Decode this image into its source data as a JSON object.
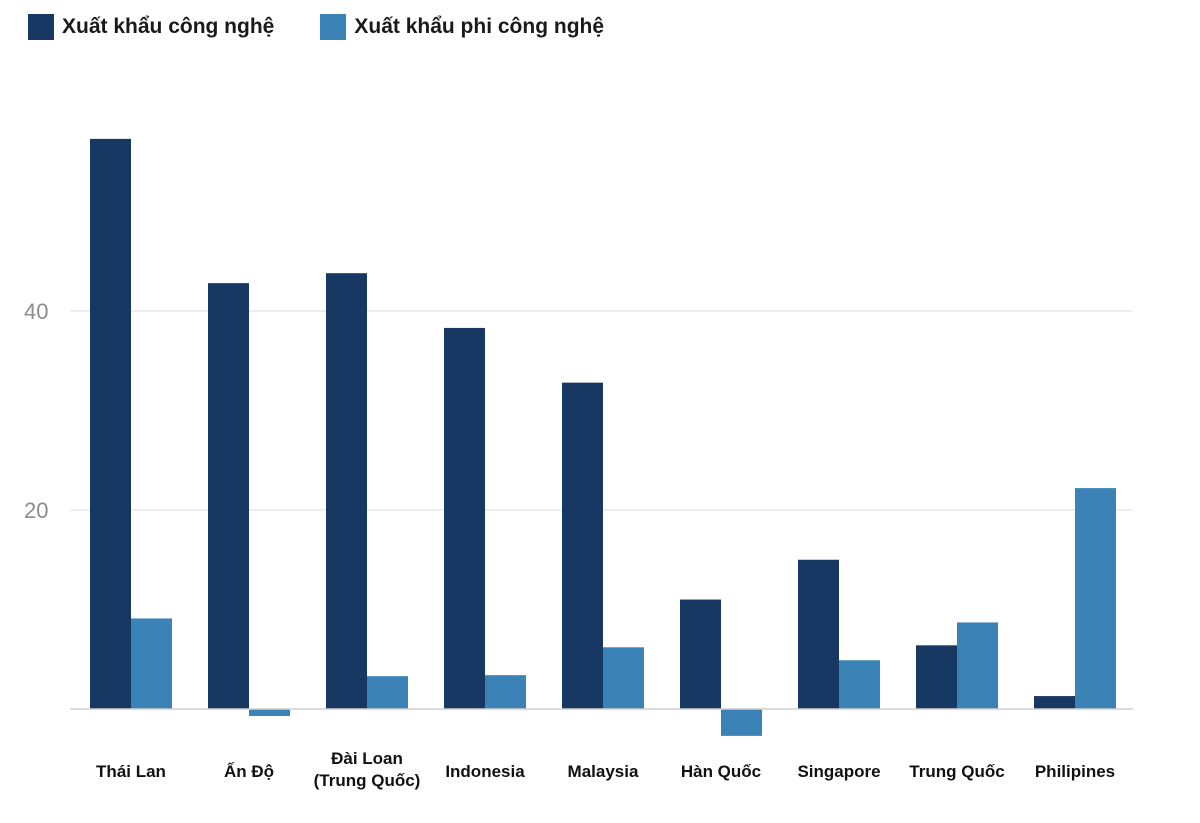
{
  "colors": {
    "tech": "#173863",
    "nontech": "#3b82b6",
    "grid": "#e3e3e3",
    "axis": "#cfcfcf"
  },
  "legend": [
    {
      "label": "Xuất khẩu công nghệ",
      "color_key": "tech"
    },
    {
      "label": "Xuất khẩu phi công nghệ",
      "color_key": "nontech"
    }
  ],
  "chart_data": {
    "type": "bar",
    "categories": [
      [
        "Thái Lan"
      ],
      [
        "Ấn Độ"
      ],
      [
        "Đài Loan",
        "(Trung Quốc)"
      ],
      [
        "Indonesia"
      ],
      [
        "Malaysia"
      ],
      [
        "Hàn Quốc"
      ],
      [
        "Singapore"
      ],
      [
        "Trung Quốc"
      ],
      [
        "Philipines"
      ]
    ],
    "series": [
      {
        "name": "Xuất khẩu công nghệ",
        "values": [
          57.3,
          42.8,
          43.8,
          38.3,
          32.8,
          11.0,
          15.0,
          6.4,
          1.3
        ]
      },
      {
        "name": "Xuất khẩu phi công nghệ",
        "values": [
          9.1,
          -0.7,
          3.3,
          3.4,
          6.2,
          -2.7,
          4.9,
          8.7,
          22.2
        ]
      }
    ],
    "yticks": [
      20,
      40
    ],
    "ylim": [
      -4,
      60
    ],
    "grid": true,
    "legend_position": "top-left"
  }
}
